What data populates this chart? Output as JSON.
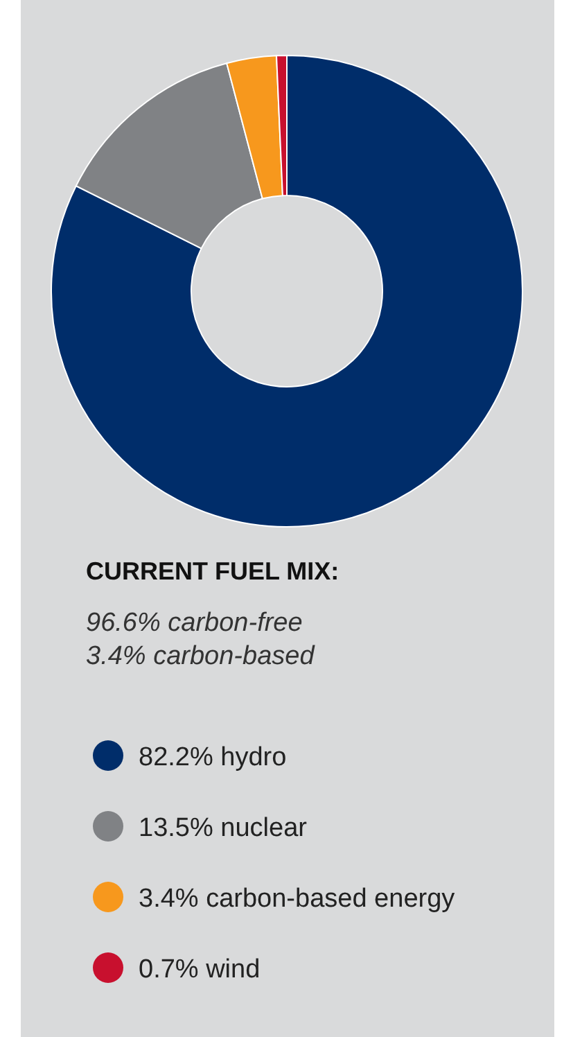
{
  "chart_data": {
    "type": "donut",
    "title": "CURRENT FUEL MIX:",
    "subtitle": "96.6% carbon-free\n3.4% carbon-based",
    "categories": [
      "82.2% hydro",
      "13.5% nuclear",
      "3.4% carbon-based energy",
      "0.7% wind"
    ],
    "values": [
      82.2,
      13.5,
      3.4,
      0.7
    ],
    "colors": [
      "#002d6a",
      "#808285",
      "#f7981d",
      "#c8102e"
    ],
    "legend": "bottom"
  }
}
